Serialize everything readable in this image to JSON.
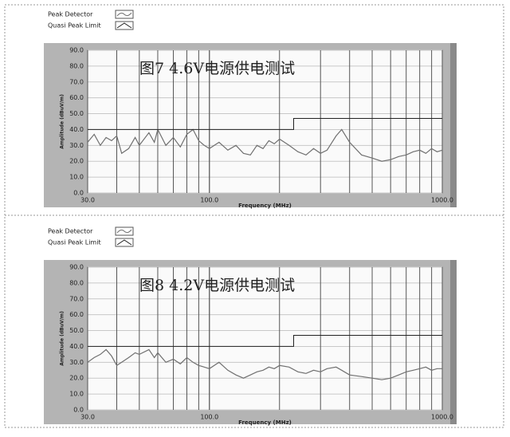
{
  "chart_data": [
    {
      "type": "line",
      "annotation": "图7  4.6V电源供电测试",
      "xlabel": "Frequency (MHz)",
      "ylabel": "Amplitude (dBuV/m)",
      "log_x": true,
      "grid": true,
      "xlim": [
        30,
        1000
      ],
      "ylim": [
        0,
        90
      ],
      "xticks": [
        {
          "value": 30,
          "label": "30.0"
        },
        {
          "value": 100,
          "label": "100.0"
        },
        {
          "value": 1000,
          "label": "1000.0"
        }
      ],
      "yticks": [
        {
          "value": 0,
          "label": "0.0"
        },
        {
          "value": 10,
          "label": "10.0"
        },
        {
          "value": 20,
          "label": "20.0"
        },
        {
          "value": 30,
          "label": "30.0"
        },
        {
          "value": 40,
          "label": "40.0"
        },
        {
          "value": 50,
          "label": "50.0"
        },
        {
          "value": 60,
          "label": "60.0"
        },
        {
          "value": 70,
          "label": "70.0"
        },
        {
          "value": 80,
          "label": "80.0"
        },
        {
          "value": 90,
          "label": "90.0"
        }
      ],
      "series": [
        {
          "name": "Peak Detector",
          "color": "#707070",
          "x": [
            30,
            32,
            34,
            36,
            38,
            40,
            42,
            45,
            48,
            50,
            55,
            58,
            60,
            65,
            70,
            75,
            80,
            85,
            90,
            95,
            100,
            110,
            120,
            130,
            140,
            150,
            160,
            170,
            180,
            190,
            200,
            220,
            240,
            260,
            280,
            300,
            320,
            350,
            370,
            400,
            450,
            500,
            550,
            600,
            650,
            700,
            750,
            800,
            850,
            900,
            950,
            1000
          ],
          "values": [
            32,
            37,
            30,
            35,
            33,
            36,
            25,
            28,
            35,
            30,
            38,
            32,
            40,
            30,
            35,
            29,
            37,
            40,
            33,
            30,
            28,
            32,
            27,
            30,
            25,
            24,
            30,
            28,
            33,
            31,
            34,
            30,
            26,
            24,
            28,
            25,
            27,
            36,
            40,
            32,
            24,
            22,
            20,
            21,
            23,
            24,
            26,
            27,
            25,
            28,
            26,
            27
          ]
        },
        {
          "name": "Quasi Peak Limit",
          "color": "#222222",
          "x": [
            30,
            230,
            230,
            1000
          ],
          "values": [
            40,
            40,
            47,
            47
          ]
        }
      ]
    },
    {
      "type": "line",
      "annotation": "图8  4.2V电源供电测试",
      "xlabel": "Frequency (MHz)",
      "ylabel": "Amplitude (dBuV/m)",
      "log_x": true,
      "grid": true,
      "xlim": [
        30,
        1000
      ],
      "ylim": [
        0,
        90
      ],
      "xticks": [
        {
          "value": 30,
          "label": "30.0"
        },
        {
          "value": 100,
          "label": "100.0"
        },
        {
          "value": 1000,
          "label": "1000.0"
        }
      ],
      "yticks": [
        {
          "value": 0,
          "label": "0.0"
        },
        {
          "value": 10,
          "label": "10.0"
        },
        {
          "value": 20,
          "label": "20.0"
        },
        {
          "value": 30,
          "label": "30.0"
        },
        {
          "value": 40,
          "label": "40.0"
        },
        {
          "value": 50,
          "label": "50.0"
        },
        {
          "value": 60,
          "label": "60.0"
        },
        {
          "value": 70,
          "label": "70.0"
        },
        {
          "value": 80,
          "label": "80.0"
        },
        {
          "value": 90,
          "label": "90.0"
        }
      ],
      "series": [
        {
          "name": "Peak Detector",
          "color": "#707070",
          "x": [
            30,
            32,
            34,
            36,
            38,
            40,
            42,
            45,
            48,
            50,
            55,
            58,
            60,
            65,
            70,
            75,
            80,
            85,
            90,
            95,
            100,
            110,
            120,
            130,
            140,
            150,
            160,
            170,
            180,
            190,
            200,
            220,
            240,
            260,
            280,
            300,
            320,
            350,
            370,
            400,
            450,
            500,
            550,
            600,
            650,
            700,
            750,
            800,
            850,
            900,
            950,
            1000
          ],
          "values": [
            30,
            33,
            35,
            38,
            34,
            28,
            30,
            33,
            36,
            35,
            38,
            33,
            36,
            30,
            32,
            29,
            33,
            30,
            28,
            27,
            26,
            30,
            25,
            22,
            20,
            22,
            24,
            25,
            27,
            26,
            28,
            27,
            24,
            23,
            25,
            24,
            26,
            27,
            25,
            22,
            21,
            20,
            19,
            20,
            22,
            24,
            25,
            26,
            27,
            25,
            26,
            26
          ]
        },
        {
          "name": "Quasi Peak Limit",
          "color": "#222222",
          "x": [
            30,
            230,
            230,
            1000
          ],
          "values": [
            40,
            40,
            47,
            47
          ]
        }
      ]
    }
  ]
}
